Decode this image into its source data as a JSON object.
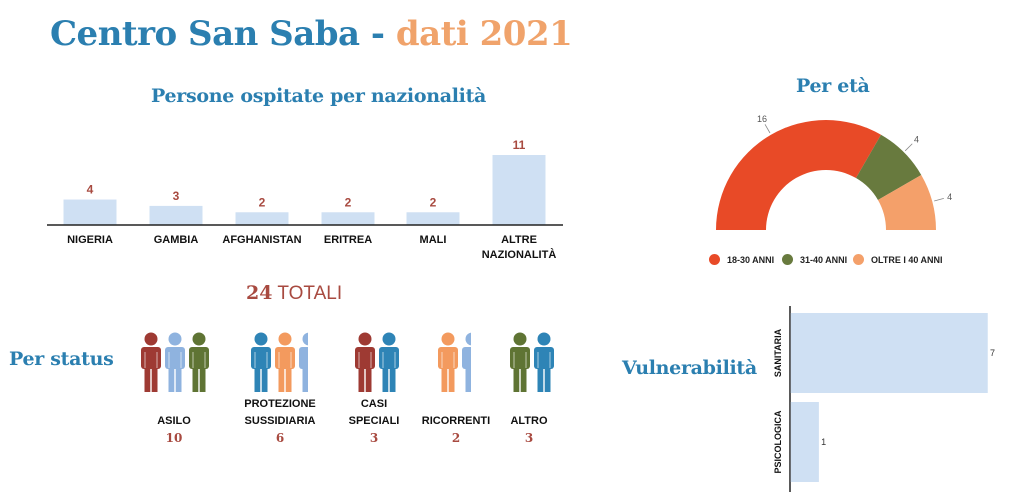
{
  "header": {
    "title_part1": "Centro San Saba",
    "title_sep": " - ",
    "title_part2": "dati 2021"
  },
  "colors": {
    "blue_title": "#2b7fb0",
    "orange_title": "#f0a36b",
    "bar_fill": "#cfe0f3",
    "count_red": "#a84a40",
    "age_young": "#e84a27",
    "age_mid": "#687a3e",
    "age_old": "#f4a06a",
    "person_red": "#9e3a33",
    "person_lightblue": "#8fb3df",
    "person_green": "#5f7434",
    "person_blue": "#2e84b6",
    "person_orange": "#f39a5e"
  },
  "nationality": {
    "heading": "Persone ospitate per nazionalità"
  },
  "age": {
    "heading": "Per età"
  },
  "status": {
    "heading": "Per status",
    "total_number": "24",
    "total_label": "TOTALI",
    "groups": [
      {
        "label_lines": [
          "ASILO"
        ],
        "count": "10",
        "icons": [
          "red",
          "lightblue",
          "green"
        ]
      },
      {
        "label_lines": [
          "PROTEZIONE",
          "SUSSIDIARIA"
        ],
        "count": "6",
        "icons": [
          "blue",
          "orange",
          "lightblue"
        ]
      },
      {
        "label_lines": [
          "CASI",
          "SPECIALI"
        ],
        "count": "3",
        "icons": [
          "red",
          "blue"
        ]
      },
      {
        "label_lines": [
          "RICORRENTI"
        ],
        "count": "2",
        "icons": [
          "orange",
          "lightblue"
        ]
      },
      {
        "label_lines": [
          "ALTRO"
        ],
        "count": "3",
        "icons": [
          "green",
          "blue"
        ]
      }
    ]
  },
  "vulnerability": {
    "heading": "Vulnerabilità"
  },
  "chart_data": [
    {
      "type": "bar",
      "title": "Persone ospitate per nazionalità",
      "categories": [
        "NIGERIA",
        "GAMBIA",
        "AFGHANISTAN",
        "ERITREA",
        "MALI",
        "ALTRE NAZIONALITÀ"
      ],
      "category_lines": [
        [
          "NIGERIA"
        ],
        [
          "GAMBIA"
        ],
        [
          "AFGHANISTAN"
        ],
        [
          "ERITREA"
        ],
        [
          "MALI"
        ],
        [
          "ALTRE",
          "NAZIONALITÀ"
        ]
      ],
      "values": [
        4,
        3,
        2,
        2,
        2,
        11
      ],
      "ylim": [
        0,
        11
      ]
    },
    {
      "type": "pie",
      "subtype": "half-donut",
      "title": "Per età",
      "categories": [
        "18-30 ANNI",
        "31-40 ANNI",
        "OLTRE I 40 ANNI"
      ],
      "values": [
        16,
        4,
        4
      ],
      "legend": "bottom"
    },
    {
      "type": "bar",
      "orientation": "horizontal",
      "title": "Vulnerabilità",
      "categories": [
        "SANITARIA",
        "PSICOLOGICA"
      ],
      "values": [
        7,
        1
      ],
      "xlim": [
        0,
        7
      ]
    }
  ]
}
